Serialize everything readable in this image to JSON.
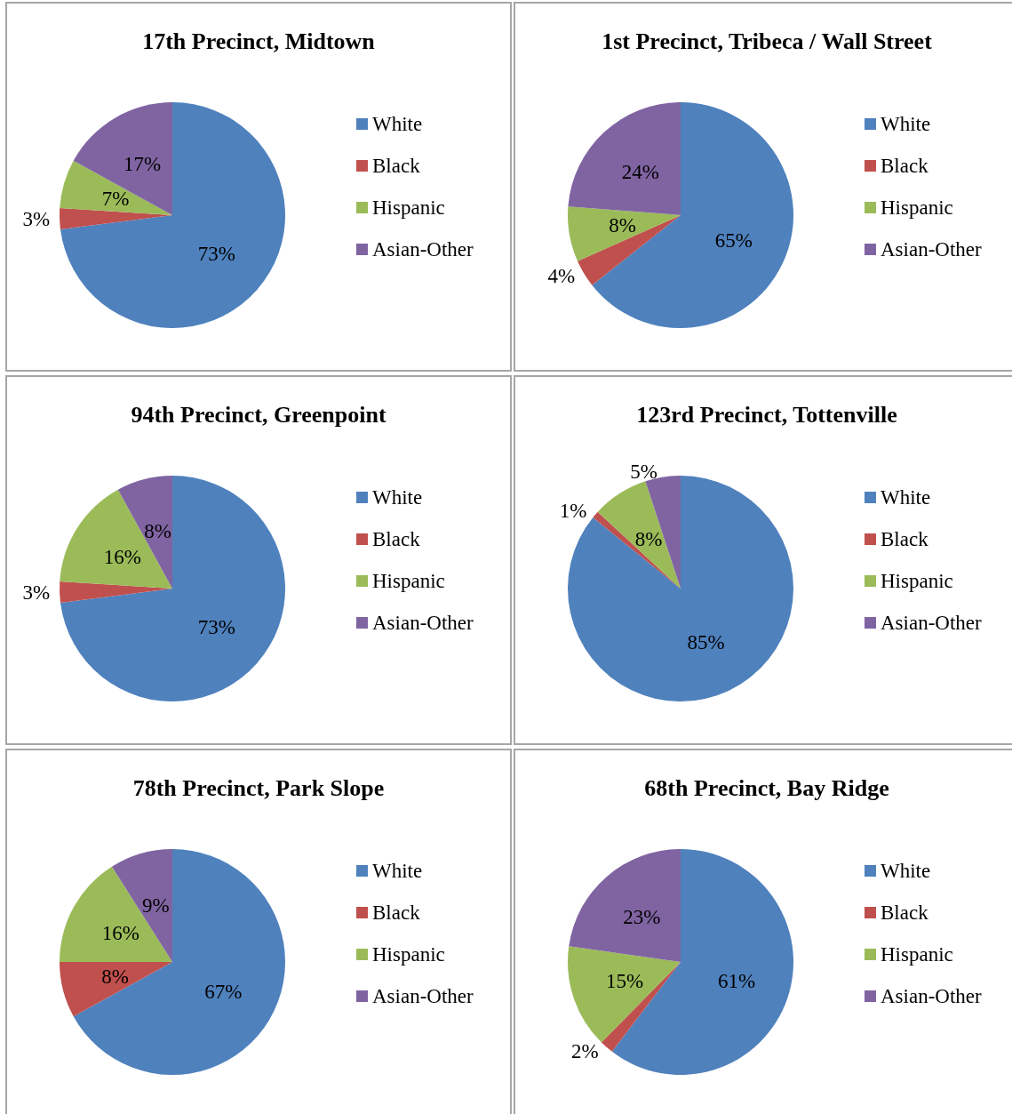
{
  "chart_data": [
    {
      "type": "pie",
      "title": "17th Precinct, Midtown",
      "categories": [
        "White",
        "Black",
        "Hispanic",
        "Asian-Other"
      ],
      "values": [
        73,
        3,
        7,
        17
      ],
      "value_labels": [
        "73%",
        "3%",
        "7%",
        "17%"
      ],
      "colors": [
        "#4f81bd",
        "#c0504d",
        "#9bbb59",
        "#8064a2"
      ],
      "legend": "right"
    },
    {
      "type": "pie",
      "title": "1st Precinct, Tribeca / Wall Street",
      "categories": [
        "White",
        "Black",
        "Hispanic",
        "Asian-Other"
      ],
      "values": [
        65,
        4,
        8,
        24
      ],
      "value_labels": [
        "65%",
        "4%",
        "8%",
        "24%"
      ],
      "colors": [
        "#4f81bd",
        "#c0504d",
        "#9bbb59",
        "#8064a2"
      ],
      "legend": "right"
    },
    {
      "type": "pie",
      "title": "94th Precinct, Greenpoint",
      "categories": [
        "White",
        "Black",
        "Hispanic",
        "Asian-Other"
      ],
      "values": [
        73,
        3,
        16,
        8
      ],
      "value_labels": [
        "73%",
        "3%",
        "16%",
        "8%"
      ],
      "colors": [
        "#4f81bd",
        "#c0504d",
        "#9bbb59",
        "#8064a2"
      ],
      "legend": "right"
    },
    {
      "type": "pie",
      "title": "123rd Precinct, Tottenville",
      "categories": [
        "White",
        "Black",
        "Hispanic",
        "Asian-Other"
      ],
      "values": [
        85,
        1,
        8,
        5
      ],
      "value_labels": [
        "85%",
        "1%",
        "8%",
        "5%"
      ],
      "colors": [
        "#4f81bd",
        "#c0504d",
        "#9bbb59",
        "#8064a2"
      ],
      "legend": "right"
    },
    {
      "type": "pie",
      "title": "78th Precinct, Park Slope",
      "categories": [
        "White",
        "Black",
        "Hispanic",
        "Asian-Other"
      ],
      "values": [
        67,
        8,
        16,
        9
      ],
      "value_labels": [
        "67%",
        "8%",
        "16%",
        "9%"
      ],
      "colors": [
        "#4f81bd",
        "#c0504d",
        "#9bbb59",
        "#8064a2"
      ],
      "legend": "right"
    },
    {
      "type": "pie",
      "title": "68th Precinct, Bay Ridge",
      "categories": [
        "White",
        "Black",
        "Hispanic",
        "Asian-Other"
      ],
      "values": [
        61,
        2,
        15,
        23
      ],
      "value_labels": [
        "61%",
        "2%",
        "15%",
        "23%"
      ],
      "colors": [
        "#4f81bd",
        "#c0504d",
        "#9bbb59",
        "#8064a2"
      ],
      "legend": "right"
    }
  ]
}
